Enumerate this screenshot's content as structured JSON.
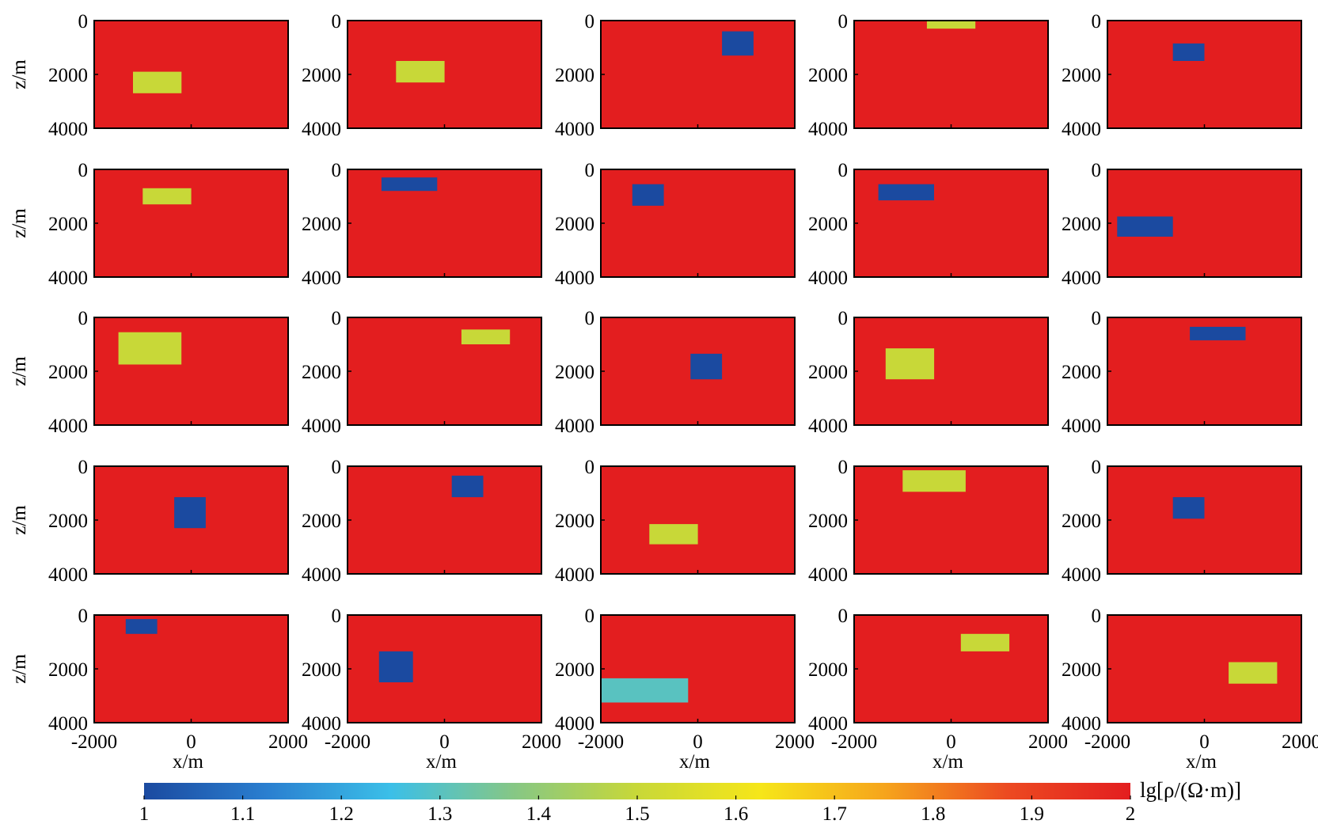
{
  "chart_data": {
    "type": "heatmap",
    "grid": {
      "rows": 5,
      "cols": 5
    },
    "xlabel": "x/m",
    "ylabel": "z/m",
    "xlim": [
      -2000,
      2000
    ],
    "ylim": [
      0,
      4000
    ],
    "y_inverted": true,
    "xticks": [
      "-2000",
      "0",
      "2000"
    ],
    "yticks": [
      "0",
      "2000",
      "4000"
    ],
    "background_value": 2,
    "colorbar": {
      "label": "lg[ρ/(Ω·m)]",
      "min": 1,
      "max": 2,
      "ticks": [
        "1",
        "1.1",
        "1.2",
        "1.3",
        "1.4",
        "1.5",
        "1.6",
        "1.7",
        "1.8",
        "1.9",
        "2"
      ],
      "stops": [
        "#1b4aa0",
        "#2a7fd0",
        "#3bbfe8",
        "#86c785",
        "#c8d838",
        "#f6e619",
        "#f6a51c",
        "#ec4a21",
        "#e31e1f"
      ]
    },
    "panels": [
      {
        "row": 0,
        "col": 0,
        "blocks": [
          {
            "x": [
              -1200,
              -200
            ],
            "z": [
              1900,
              2700
            ],
            "value": 1.5
          }
        ]
      },
      {
        "row": 0,
        "col": 1,
        "blocks": [
          {
            "x": [
              -1000,
              0
            ],
            "z": [
              1500,
              2300
            ],
            "value": 1.5
          }
        ]
      },
      {
        "row": 0,
        "col": 2,
        "blocks": [
          {
            "x": [
              500,
              1150
            ],
            "z": [
              400,
              1300
            ],
            "value": 1.0
          }
        ]
      },
      {
        "row": 0,
        "col": 3,
        "blocks": [
          {
            "x": [
              -500,
              500
            ],
            "z": [
              0,
              300
            ],
            "value": 1.5
          }
        ]
      },
      {
        "row": 0,
        "col": 4,
        "blocks": [
          {
            "x": [
              -650,
              0
            ],
            "z": [
              850,
              1500
            ],
            "value": 1.0
          }
        ]
      },
      {
        "row": 1,
        "col": 0,
        "blocks": [
          {
            "x": [
              -1000,
              0
            ],
            "z": [
              700,
              1300
            ],
            "value": 1.5
          }
        ]
      },
      {
        "row": 1,
        "col": 1,
        "blocks": [
          {
            "x": [
              -1300,
              -150
            ],
            "z": [
              300,
              800
            ],
            "value": 1.0
          }
        ]
      },
      {
        "row": 1,
        "col": 2,
        "blocks": [
          {
            "x": [
              -1350,
              -700
            ],
            "z": [
              550,
              1350
            ],
            "value": 1.0
          }
        ]
      },
      {
        "row": 1,
        "col": 3,
        "blocks": [
          {
            "x": [
              -1500,
              -350
            ],
            "z": [
              550,
              1150
            ],
            "value": 1.0
          }
        ]
      },
      {
        "row": 1,
        "col": 4,
        "blocks": [
          {
            "x": [
              -1800,
              -650
            ],
            "z": [
              1750,
              2500
            ],
            "value": 1.0
          }
        ]
      },
      {
        "row": 2,
        "col": 0,
        "blocks": [
          {
            "x": [
              -1500,
              -200
            ],
            "z": [
              550,
              1750
            ],
            "value": 1.5
          }
        ]
      },
      {
        "row": 2,
        "col": 1,
        "blocks": [
          {
            "x": [
              350,
              1350
            ],
            "z": [
              450,
              1000
            ],
            "value": 1.5
          }
        ]
      },
      {
        "row": 2,
        "col": 2,
        "blocks": [
          {
            "x": [
              -150,
              500
            ],
            "z": [
              1350,
              2300
            ],
            "value": 1.0
          }
        ]
      },
      {
        "row": 2,
        "col": 3,
        "blocks": [
          {
            "x": [
              -1350,
              -350
            ],
            "z": [
              1150,
              2300
            ],
            "value": 1.5
          }
        ]
      },
      {
        "row": 2,
        "col": 4,
        "blocks": [
          {
            "x": [
              -300,
              850
            ],
            "z": [
              350,
              850
            ],
            "value": 1.0
          }
        ]
      },
      {
        "row": 3,
        "col": 0,
        "blocks": [
          {
            "x": [
              -350,
              300
            ],
            "z": [
              1150,
              2300
            ],
            "value": 1.0
          }
        ]
      },
      {
        "row": 3,
        "col": 1,
        "blocks": [
          {
            "x": [
              150,
              800
            ],
            "z": [
              350,
              1150
            ],
            "value": 1.0
          }
        ]
      },
      {
        "row": 3,
        "col": 2,
        "blocks": [
          {
            "x": [
              -1000,
              0
            ],
            "z": [
              2150,
              2900
            ],
            "value": 1.5
          }
        ]
      },
      {
        "row": 3,
        "col": 3,
        "blocks": [
          {
            "x": [
              -1000,
              300
            ],
            "z": [
              150,
              950
            ],
            "value": 1.5
          }
        ]
      },
      {
        "row": 3,
        "col": 4,
        "blocks": [
          {
            "x": [
              -650,
              0
            ],
            "z": [
              1150,
              1950
            ],
            "value": 1.0
          }
        ]
      },
      {
        "row": 4,
        "col": 0,
        "blocks": [
          {
            "x": [
              -1350,
              -700
            ],
            "z": [
              150,
              700
            ],
            "value": 1.0
          }
        ]
      },
      {
        "row": 4,
        "col": 1,
        "blocks": [
          {
            "x": [
              -1350,
              -650
            ],
            "z": [
              1350,
              2500
            ],
            "value": 1.0
          }
        ]
      },
      {
        "row": 4,
        "col": 2,
        "blocks": [
          {
            "x": [
              -2000,
              -200
            ],
            "z": [
              2350,
              3250
            ],
            "value": 1.3
          }
        ]
      },
      {
        "row": 4,
        "col": 3,
        "blocks": [
          {
            "x": [
              200,
              1200
            ],
            "z": [
              700,
              1350
            ],
            "value": 1.5
          }
        ]
      },
      {
        "row": 4,
        "col": 4,
        "blocks": [
          {
            "x": [
              500,
              1500
            ],
            "z": [
              1750,
              2550
            ],
            "value": 1.5
          }
        ]
      }
    ]
  }
}
